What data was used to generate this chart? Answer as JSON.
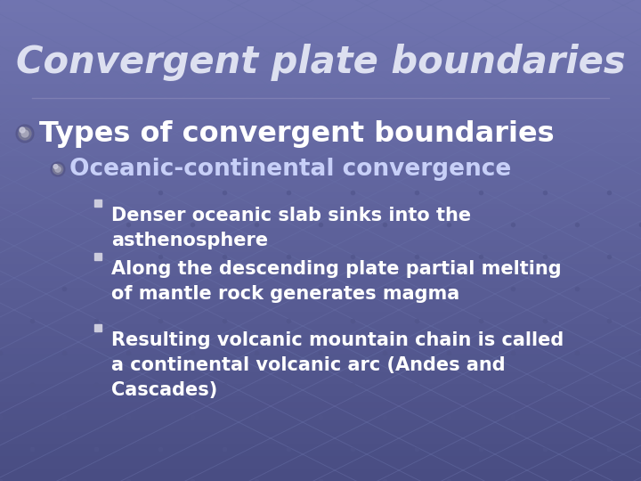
{
  "title": "Convergent plate boundaries",
  "title_fontsize": 30,
  "title_color": "#dde0f0",
  "bg_color": "#5a5e95",
  "bg_top_color": "#6a6ea8",
  "bg_bottom_color": "#4a4e82",
  "text_color": "#ffffff",
  "bullet1_text": "Types of convergent boundaries",
  "bullet1_fontsize": 23,
  "bullet2_text": "Oceanic-continental convergence",
  "bullet2_fontsize": 19,
  "bullet2_color": "#c8d0f8",
  "sub_bullets": [
    "Denser oceanic slab sinks into the\nasthenosphere",
    "Along the descending plate partial melting\nof mantle rock generates magma",
    "Resulting volcanic mountain chain is called\na continental volcanic arc (Andes and\nCascades)"
  ],
  "sub_bullet_fontsize": 15,
  "grid_line_color": "#6870a8",
  "grid_dot_color": "#50548a",
  "separator_color": "#8888b8"
}
